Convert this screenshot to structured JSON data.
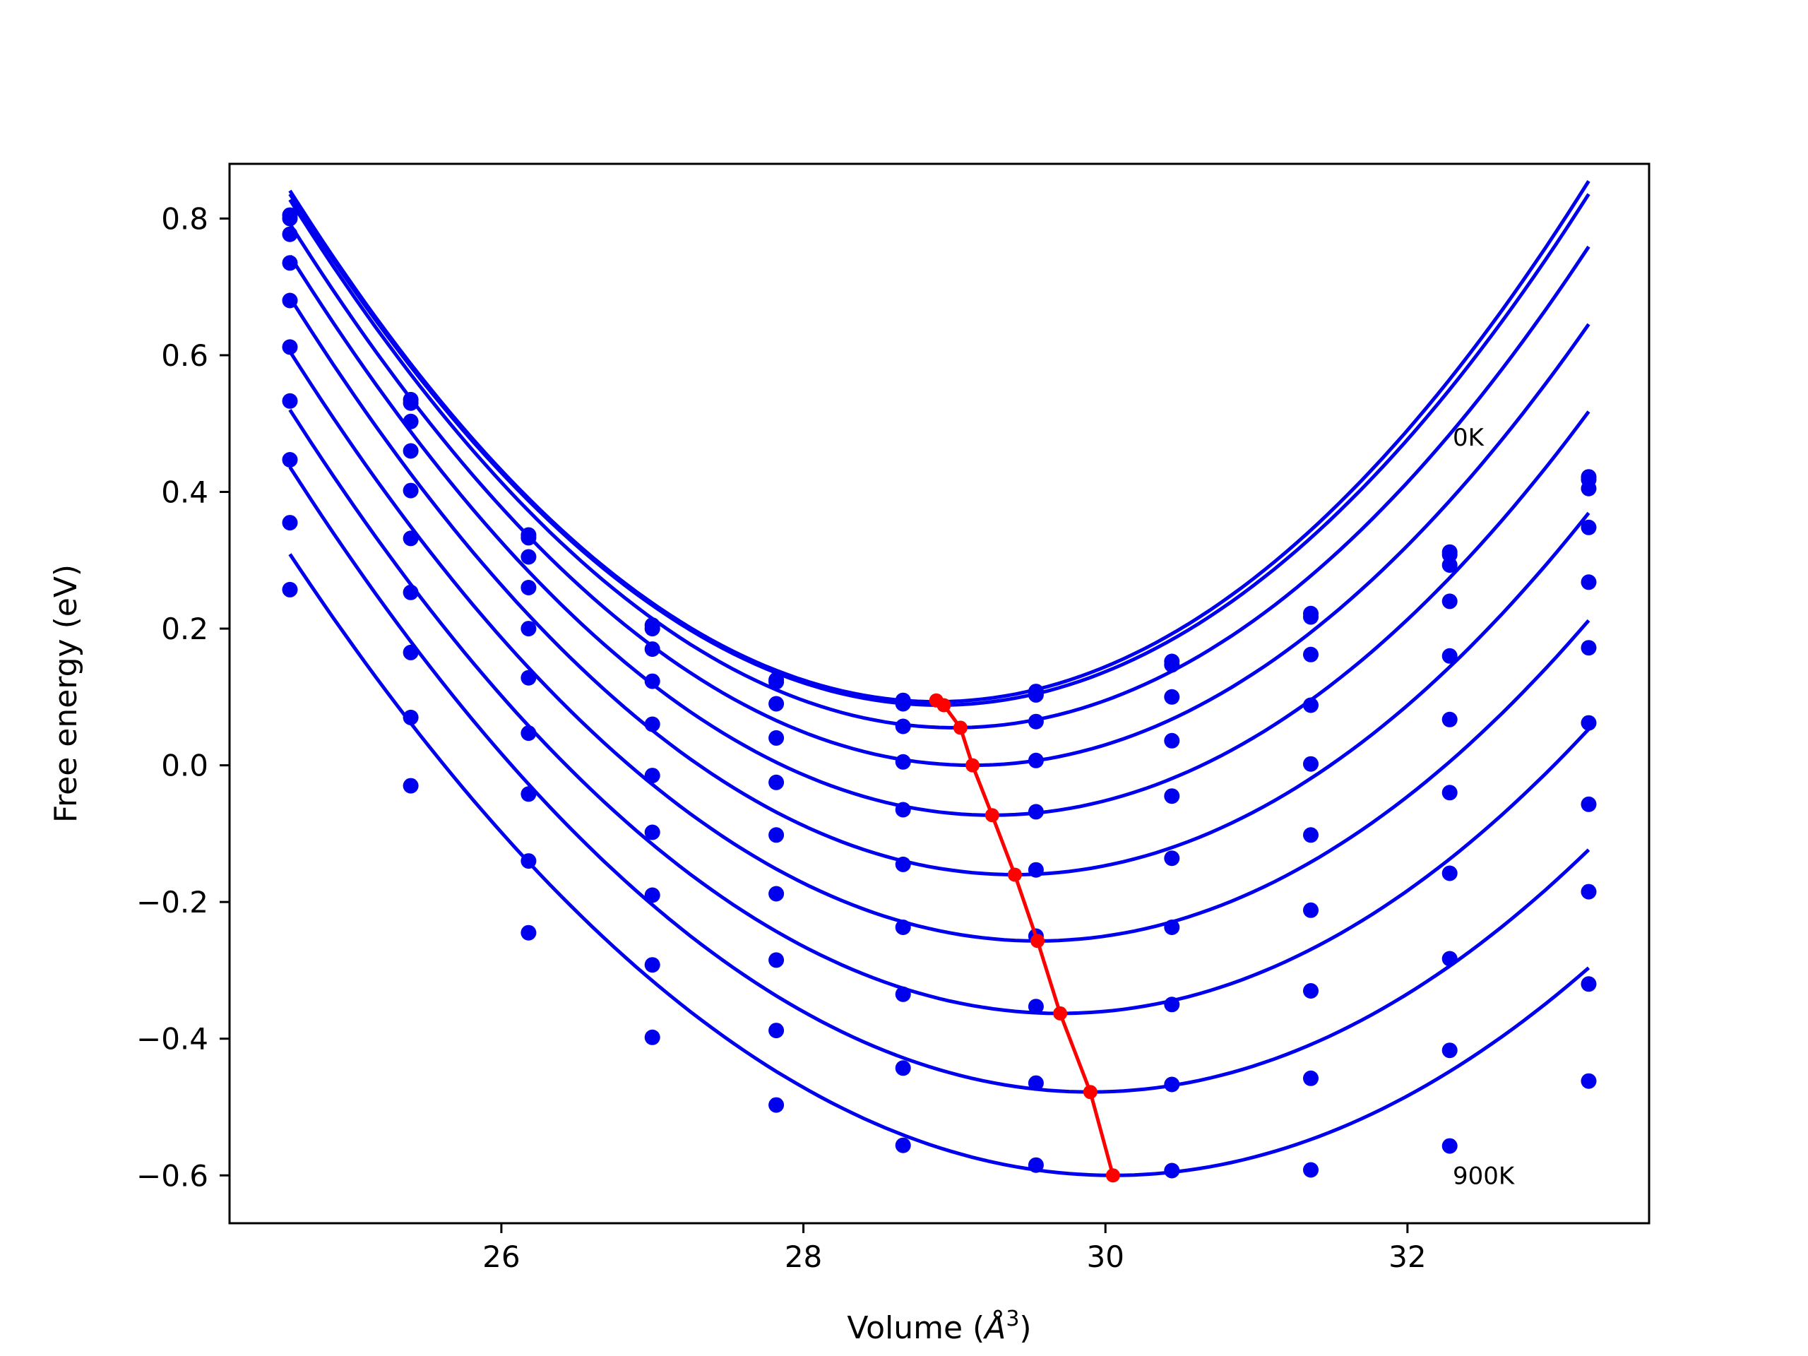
{
  "chart_data": {
    "type": "line",
    "title": "",
    "xlabel": "Volume (",
    "xlabel_sym": "Å",
    "xlabel_sup": "3",
    "xlabel_close": ")",
    "ylabel": "Free energy (eV)",
    "xlim": [
      24.2,
      33.6
    ],
    "ylim": [
      -0.67,
      0.88
    ],
    "xticks": [
      26,
      28,
      30,
      32
    ],
    "yticks": [
      0.8,
      0.6,
      0.4,
      0.2,
      0.0,
      -0.2,
      -0.4,
      -0.6
    ],
    "xtick_labels": [
      "26",
      "28",
      "30",
      "32"
    ],
    "ytick_labels": [
      "0.8",
      "0.6",
      "0.4",
      "0.2",
      "0.0",
      "−0.2",
      "−0.4",
      "−0.6"
    ],
    "grid": false,
    "annotations": [
      {
        "text": "0K",
        "x": 32.3,
        "y": 0.48
      },
      {
        "text": "900K",
        "x": 32.3,
        "y": -0.6
      }
    ],
    "x": [
      24.6,
      25.4,
      26.18,
      27.0,
      27.82,
      28.66,
      29.54,
      30.44,
      31.36,
      32.28,
      33.2
    ],
    "series": [
      {
        "points": [
          0.805,
          0.535,
          0.337,
          0.205,
          0.125,
          0.095,
          0.108,
          0.152,
          0.222,
          0.312,
          0.422
        ],
        "fit": {
          "a": 0.04082,
          "vmin": 28.88,
          "fmin": 0.093
        }
      },
      {
        "points": [
          0.8,
          0.53,
          0.333,
          0.2,
          0.122,
          0.09,
          0.103,
          0.147,
          0.217,
          0.308,
          0.418
        ],
        "fit": {
          "a": 0.04044,
          "vmin": 28.9,
          "fmin": 0.088
        }
      },
      {
        "points": [
          0.777,
          0.503,
          0.305,
          0.17,
          0.09,
          0.057,
          0.064,
          0.1,
          0.162,
          0.293,
          0.405
        ],
        "fit": {
          "a": 0.0399,
          "vmin": 29.0,
          "fmin": 0.055
        }
      },
      {
        "points": [
          0.735,
          0.46,
          0.26,
          0.123,
          0.04,
          0.005,
          0.007,
          0.036,
          0.088,
          0.24,
          0.348
        ],
        "fit": {
          "a": 0.03877,
          "vmin": 29.12,
          "fmin": 0.0
        }
      },
      {
        "points": [
          0.68,
          0.402,
          0.2,
          0.06,
          -0.025,
          -0.065,
          -0.068,
          -0.045,
          0.002,
          0.16,
          0.268
        ],
        "fit": {
          "a": 0.03785,
          "vmin": 29.25,
          "fmin": -0.073
        }
      },
      {
        "points": [
          0.612,
          0.332,
          0.128,
          -0.015,
          -0.102,
          -0.145,
          -0.153,
          -0.136,
          -0.102,
          0.067,
          0.172
        ],
        "fit": {
          "a": 0.03665,
          "vmin": 29.4,
          "fmin": -0.16
        }
      },
      {
        "points": [
          0.533,
          0.253,
          0.047,
          -0.098,
          -0.188,
          -0.237,
          -0.25,
          -0.237,
          -0.212,
          -0.04,
          0.062
        ],
        "fit": {
          "a": 0.0352,
          "vmin": 29.55,
          "fmin": -0.257
        }
      },
      {
        "points": [
          0.447,
          0.165,
          -0.042,
          -0.19,
          -0.285,
          -0.335,
          -0.353,
          -0.35,
          -0.33,
          -0.158,
          -0.057
        ],
        "fit": {
          "a": 0.03395,
          "vmin": 29.7,
          "fmin": -0.363
        }
      },
      {
        "points": [
          0.355,
          0.07,
          -0.14,
          -0.292,
          -0.388,
          -0.443,
          -0.465,
          -0.467,
          -0.458,
          -0.283,
          -0.185
        ],
        "fit": {
          "a": 0.03255,
          "vmin": 29.9,
          "fmin": -0.478
        }
      },
      {
        "points": [
          0.257,
          -0.03,
          -0.245,
          -0.398,
          -0.497,
          -0.556,
          -0.585,
          -0.593,
          -0.592,
          -0.417,
          -0.32
        ],
        "fit": {
          "a": 0.0306,
          "vmin": 30.05,
          "fmin": -0.6
        }
      },
      {
        "points": [
          null,
          null,
          null,
          null,
          null,
          null,
          null,
          null,
          null,
          -0.557,
          -0.462
        ],
        "fit": {
          "a": 0.0306,
          "vmin": 30.05,
          "fmin": -0.6,
          "draw": false
        }
      }
    ],
    "minima": {
      "x": [
        28.88,
        28.93,
        29.04,
        29.12,
        29.25,
        29.4,
        29.55,
        29.7,
        29.9,
        30.05
      ],
      "y": [
        0.095,
        0.088,
        0.055,
        0.0,
        -0.073,
        -0.16,
        -0.257,
        -0.363,
        -0.478,
        -0.6
      ]
    },
    "colors": {
      "curves": "#0000ee",
      "minima": "#ff0000",
      "axes": "#000000"
    }
  }
}
